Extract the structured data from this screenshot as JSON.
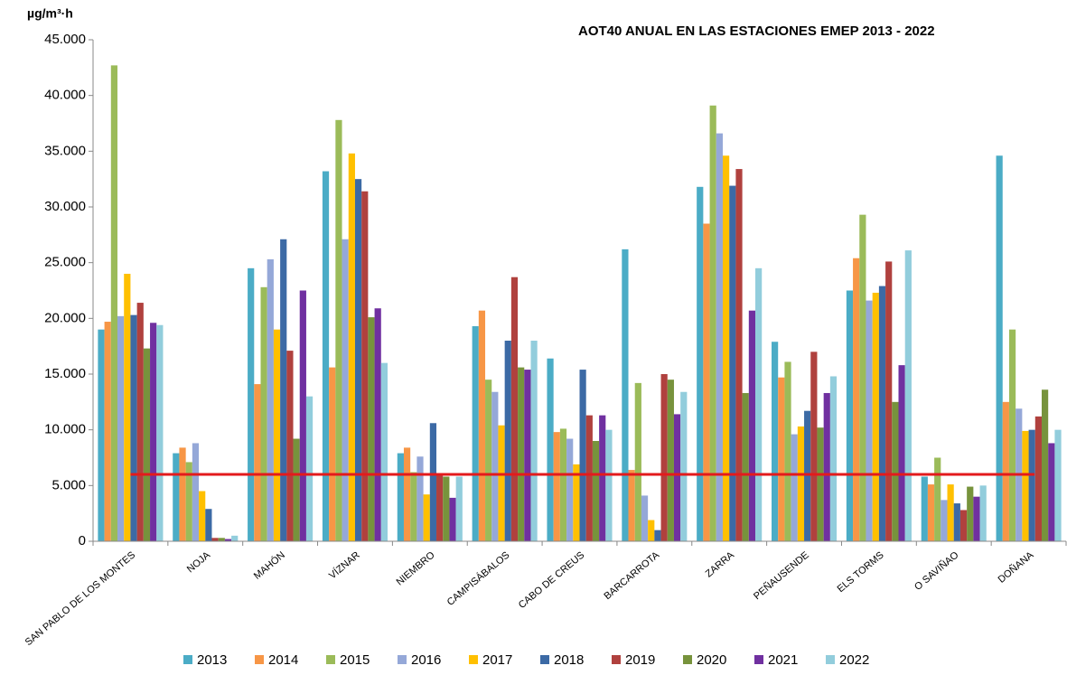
{
  "chart_data": {
    "type": "bar",
    "title": "AOT40 ANUAL EN LAS ESTACIONES EMEP 2013 - 2022",
    "y_label": "µg/m³·h",
    "categories": [
      "SAN PABLO DE LOS MONTES",
      "NOJA",
      "MAHÓN",
      "VÍZNAR",
      "NIEMBRO",
      "CAMPISÁBALOS",
      "CABO DE CREUS",
      "BARCARROTA",
      "ZARRA",
      "PEÑAUSENDE",
      "ELS TORMS",
      "O SAVIÑAO",
      "DOÑANA"
    ],
    "series": [
      {
        "name": "2013",
        "color": "#4bacc6",
        "values": [
          19000,
          7900,
          24500,
          33200,
          7900,
          19300,
          16400,
          26200,
          31800,
          17900,
          22500,
          5800,
          34600
        ]
      },
      {
        "name": "2014",
        "color": "#f79646",
        "values": [
          19700,
          8400,
          14100,
          15600,
          8400,
          20700,
          9800,
          6400,
          28500,
          14700,
          25400,
          5100,
          12500
        ]
      },
      {
        "name": "2015",
        "color": "#9bbb59",
        "values": [
          42700,
          7100,
          22800,
          37800,
          6200,
          14500,
          10100,
          14200,
          39100,
          16100,
          29300,
          7500,
          19000
        ]
      },
      {
        "name": "2016",
        "color": "#95a8d8",
        "values": [
          20200,
          8800,
          25300,
          27100,
          7600,
          13400,
          9200,
          4100,
          36600,
          9600,
          21600,
          3700,
          11900
        ]
      },
      {
        "name": "2017",
        "color": "#ffc000",
        "values": [
          24000,
          4500,
          19000,
          34800,
          4200,
          10400,
          6900,
          1900,
          34600,
          10300,
          22300,
          5100,
          9900
        ]
      },
      {
        "name": "2018",
        "color": "#3c6aa5",
        "values": [
          20300,
          2900,
          27100,
          32500,
          10600,
          18000,
          15400,
          1000,
          31900,
          11700,
          22900,
          3400,
          10000
        ]
      },
      {
        "name": "2019",
        "color": "#b0413e",
        "values": [
          21400,
          300,
          17100,
          31400,
          6000,
          23700,
          11300,
          15000,
          33400,
          17000,
          25100,
          2800,
          11200
        ]
      },
      {
        "name": "2020",
        "color": "#77933c",
        "values": [
          17300,
          300,
          9200,
          20100,
          5800,
          15600,
          9000,
          14500,
          13300,
          10200,
          12500,
          4900,
          13600
        ]
      },
      {
        "name": "2021",
        "color": "#7030a0",
        "values": [
          19600,
          200,
          22500,
          20900,
          3900,
          15400,
          11300,
          11400,
          20700,
          13300,
          15800,
          4000,
          8800
        ]
      },
      {
        "name": "2022",
        "color": "#92cddc",
        "values": [
          19400,
          500,
          13000,
          16000,
          5800,
          18000,
          10000,
          13400,
          24500,
          14800,
          26100,
          5000,
          10000
        ]
      }
    ],
    "threshold": {
      "value": 6000,
      "color": "#e31a1c"
    },
    "ylim": [
      0,
      45000
    ],
    "yticks": [
      0,
      {
        "value": 5000,
        "label": "5.000"
      },
      {
        "value": 10000,
        "label": "10.000"
      },
      {
        "value": 15000,
        "label": "15.000"
      },
      {
        "value": 20000,
        "label": "20.000"
      },
      {
        "value": 25000,
        "label": "25.000"
      },
      {
        "value": 30000,
        "label": "30.000"
      },
      {
        "value": 35000,
        "label": "35.000"
      },
      {
        "value": 40000,
        "label": "40.000"
      },
      {
        "value": 45000,
        "label": "45.000"
      }
    ],
    "grid": false,
    "legend": "bottom"
  }
}
